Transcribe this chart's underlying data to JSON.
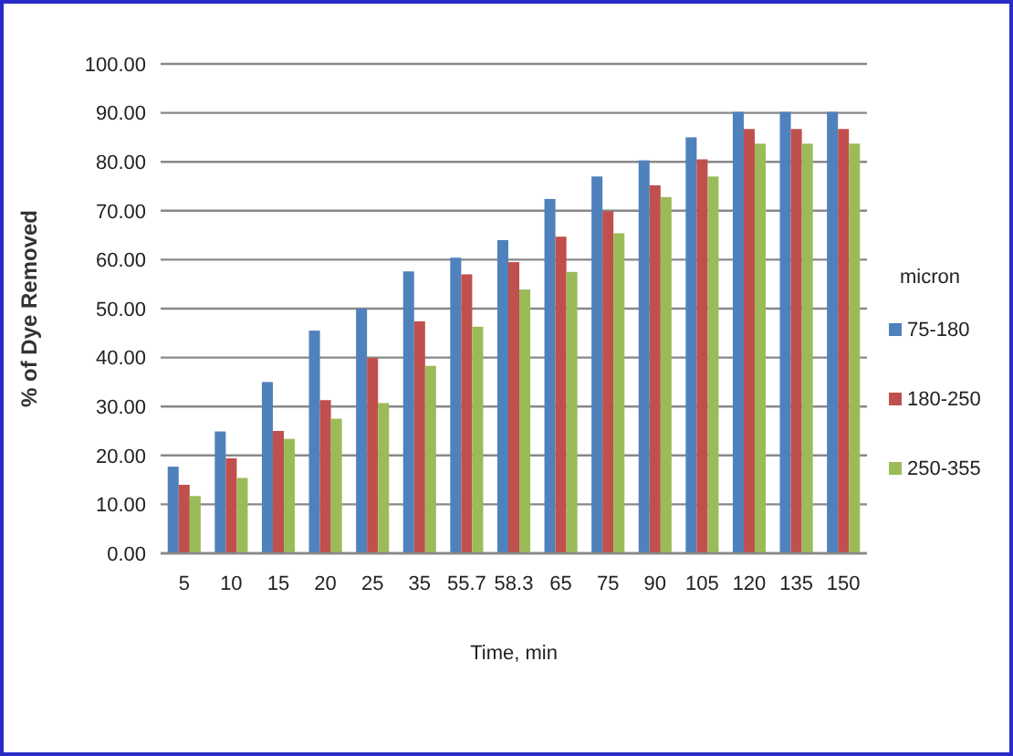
{
  "chart_data": {
    "type": "bar",
    "xlabel": "Time, min",
    "ylabel": "% of Dye Removed",
    "legend_title": "micron",
    "categories": [
      "5",
      "10",
      "15",
      "20",
      "25",
      "35",
      "55.7",
      "58.3",
      "65",
      "75",
      "90",
      "105",
      "120",
      "135",
      "150"
    ],
    "series": [
      {
        "name": "75-180",
        "color": "#4f81bd",
        "values": [
          17.7,
          24.9,
          35,
          45.5,
          50,
          57.6,
          60.4,
          64,
          72.4,
          77,
          80.3,
          85,
          90.2,
          90.2,
          90.2
        ]
      },
      {
        "name": "180-250",
        "color": "#c0504d",
        "values": [
          14,
          19.4,
          25,
          31.3,
          39.9,
          47.4,
          57,
          59.5,
          64.7,
          69.9,
          75.2,
          80.5,
          86.7,
          86.7,
          86.7
        ]
      },
      {
        "name": "250-355",
        "color": "#9bbb59",
        "values": [
          11.7,
          15.4,
          23.4,
          27.5,
          30.7,
          38.3,
          46.3,
          53.9,
          57.5,
          65.4,
          72.8,
          77,
          83.7,
          83.7,
          83.7
        ]
      }
    ],
    "ylim": [
      0,
      100
    ],
    "yticks": [
      {
        "value": 0,
        "label": "0.00"
      },
      {
        "value": 10,
        "label": "10.00"
      },
      {
        "value": 20,
        "label": "20.00"
      },
      {
        "value": 30,
        "label": "30.00"
      },
      {
        "value": 40,
        "label": "40.00"
      },
      {
        "value": 50,
        "label": "50.00"
      },
      {
        "value": 60,
        "label": "60.00"
      },
      {
        "value": 70,
        "label": "70.00"
      },
      {
        "value": 80,
        "label": "80.00"
      },
      {
        "value": 90,
        "label": "90.00"
      },
      {
        "value": 100,
        "label": "100.00"
      }
    ],
    "grid": "y",
    "legend": "right"
  }
}
